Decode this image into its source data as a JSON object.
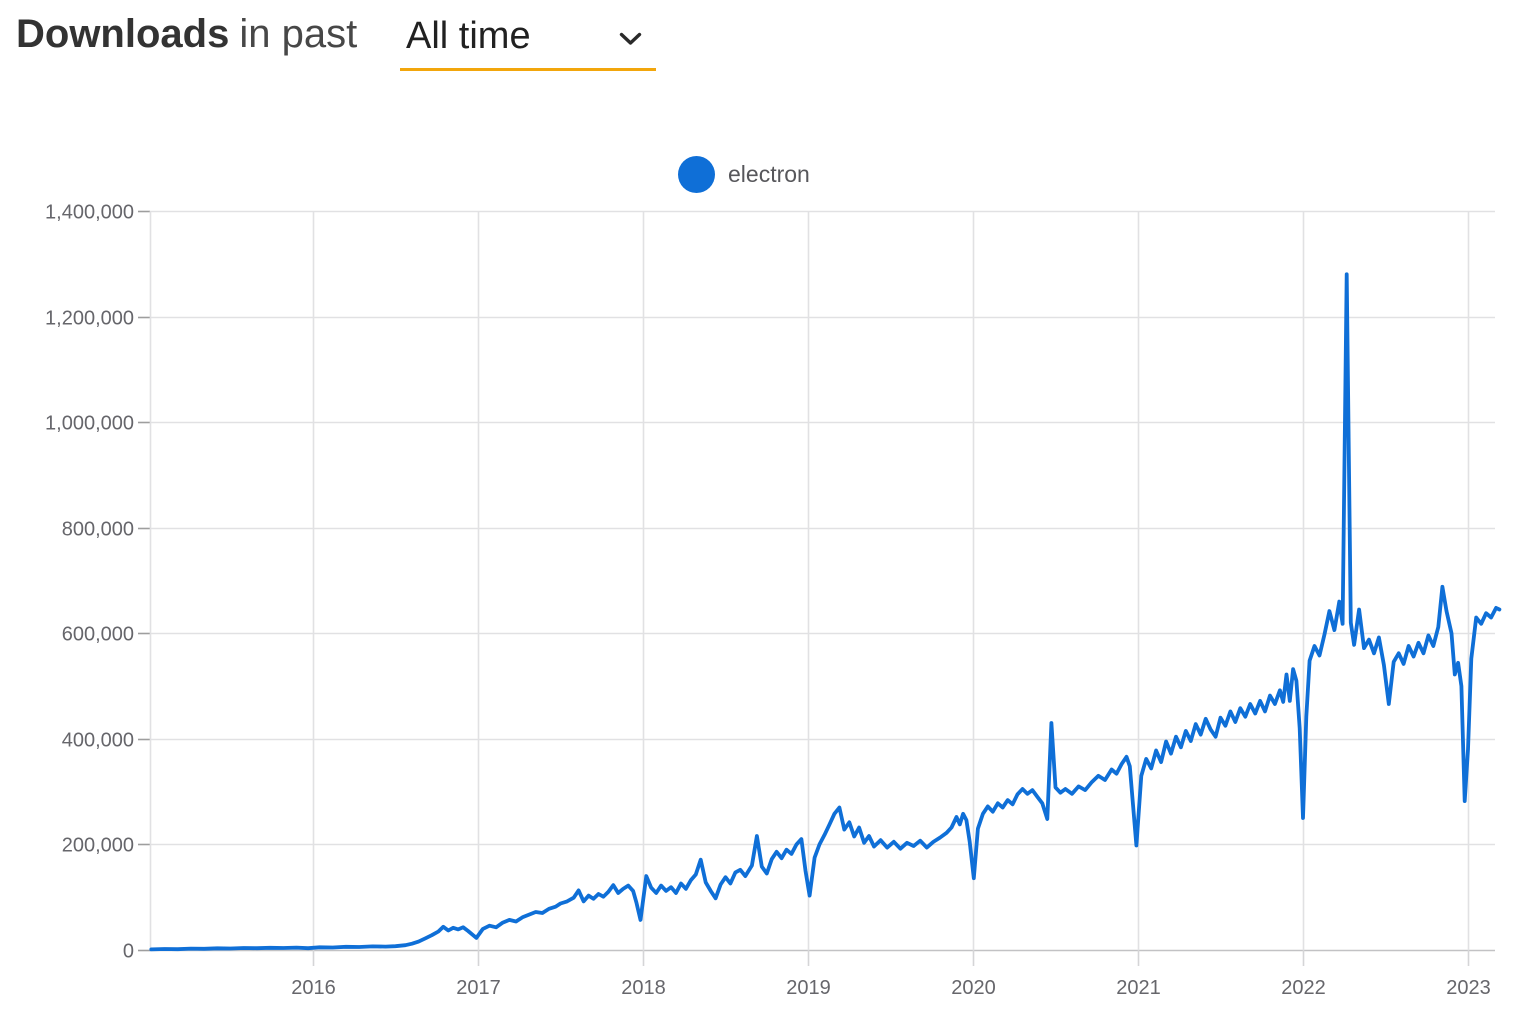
{
  "header": {
    "title_bold": "Downloads",
    "title_in_past": "in past",
    "range_value": "All time",
    "underline_color": "#f2a60c"
  },
  "legend": {
    "series_label": "electron",
    "marker_color": "#0f6fd7"
  },
  "chart_data": {
    "type": "line",
    "title": "Downloads in past All time",
    "legend_position": "top-center",
    "grid": true,
    "series_name": "electron",
    "line_color": "#0f6fd7",
    "x_axis": {
      "tick_years": [
        2016,
        2017,
        2018,
        2019,
        2020,
        2021,
        2022,
        2023
      ],
      "tick_labels": [
        "2016",
        "2017",
        "2018",
        "2019",
        "2020",
        "2021",
        "2022",
        "2023"
      ],
      "range": [
        2015.0,
        2023.22
      ]
    },
    "y_axis": {
      "tick_values": [
        0,
        200000,
        400000,
        600000,
        800000,
        1000000,
        1200000,
        1400000
      ],
      "tick_labels": [
        "0",
        "200,000",
        "400,000",
        "600,000",
        "800,000",
        "1,000,000",
        "1,200,000",
        "1,400,000"
      ],
      "range": [
        0,
        1400000
      ]
    },
    "series": [
      {
        "name": "electron",
        "color": "#0f6fd7",
        "points": [
          [
            2015.02,
            1200
          ],
          [
            2015.1,
            1800
          ],
          [
            2015.18,
            1500
          ],
          [
            2015.26,
            2600
          ],
          [
            2015.34,
            2200
          ],
          [
            2015.42,
            3200
          ],
          [
            2015.5,
            2800
          ],
          [
            2015.58,
            3800
          ],
          [
            2015.66,
            3400
          ],
          [
            2015.74,
            4200
          ],
          [
            2015.82,
            3800
          ],
          [
            2015.9,
            4600
          ],
          [
            2015.97,
            3500
          ],
          [
            2016.04,
            5200
          ],
          [
            2016.12,
            4800
          ],
          [
            2016.2,
            6000
          ],
          [
            2016.28,
            5600
          ],
          [
            2016.36,
            6800
          ],
          [
            2016.44,
            6400
          ],
          [
            2016.5,
            7200
          ],
          [
            2016.56,
            9000
          ],
          [
            2016.6,
            12000
          ],
          [
            2016.64,
            16000
          ],
          [
            2016.68,
            22000
          ],
          [
            2016.72,
            28000
          ],
          [
            2016.76,
            35000
          ],
          [
            2016.79,
            44000
          ],
          [
            2016.82,
            37000
          ],
          [
            2016.85,
            42000
          ],
          [
            2016.88,
            39000
          ],
          [
            2016.91,
            43000
          ],
          [
            2016.94,
            36000
          ],
          [
            2016.97,
            28000
          ],
          [
            2016.99,
            23000
          ],
          [
            2017.03,
            40000
          ],
          [
            2017.07,
            46000
          ],
          [
            2017.11,
            43000
          ],
          [
            2017.15,
            52000
          ],
          [
            2017.19,
            57000
          ],
          [
            2017.23,
            54000
          ],
          [
            2017.27,
            62000
          ],
          [
            2017.31,
            67000
          ],
          [
            2017.35,
            72000
          ],
          [
            2017.39,
            70000
          ],
          [
            2017.43,
            78000
          ],
          [
            2017.47,
            82000
          ],
          [
            2017.5,
            88000
          ],
          [
            2017.54,
            92000
          ],
          [
            2017.58,
            99000
          ],
          [
            2017.61,
            113000
          ],
          [
            2017.64,
            92000
          ],
          [
            2017.67,
            103000
          ],
          [
            2017.7,
            97000
          ],
          [
            2017.73,
            106000
          ],
          [
            2017.76,
            101000
          ],
          [
            2017.79,
            110000
          ],
          [
            2017.82,
            123000
          ],
          [
            2017.85,
            108000
          ],
          [
            2017.88,
            116000
          ],
          [
            2017.91,
            122000
          ],
          [
            2017.94,
            112000
          ],
          [
            2017.96,
            90000
          ],
          [
            2017.985,
            57000
          ],
          [
            2018.02,
            140000
          ],
          [
            2018.05,
            118000
          ],
          [
            2018.08,
            108000
          ],
          [
            2018.11,
            122000
          ],
          [
            2018.14,
            112000
          ],
          [
            2018.17,
            119000
          ],
          [
            2018.2,
            108000
          ],
          [
            2018.23,
            126000
          ],
          [
            2018.26,
            116000
          ],
          [
            2018.29,
            132000
          ],
          [
            2018.32,
            143000
          ],
          [
            2018.35,
            171000
          ],
          [
            2018.38,
            128000
          ],
          [
            2018.41,
            112000
          ],
          [
            2018.44,
            98000
          ],
          [
            2018.47,
            124000
          ],
          [
            2018.5,
            138000
          ],
          [
            2018.53,
            126000
          ],
          [
            2018.56,
            147000
          ],
          [
            2018.59,
            152000
          ],
          [
            2018.62,
            140000
          ],
          [
            2018.66,
            160000
          ],
          [
            2018.69,
            216000
          ],
          [
            2018.72,
            158000
          ],
          [
            2018.75,
            145000
          ],
          [
            2018.78,
            172000
          ],
          [
            2018.81,
            186000
          ],
          [
            2018.84,
            174000
          ],
          [
            2018.87,
            190000
          ],
          [
            2018.9,
            182000
          ],
          [
            2018.93,
            200000
          ],
          [
            2018.96,
            210000
          ],
          [
            2018.985,
            150000
          ],
          [
            2019.01,
            103000
          ],
          [
            2019.04,
            175000
          ],
          [
            2019.07,
            200000
          ],
          [
            2019.1,
            218000
          ],
          [
            2019.13,
            238000
          ],
          [
            2019.16,
            258000
          ],
          [
            2019.19,
            270000
          ],
          [
            2019.22,
            228000
          ],
          [
            2019.25,
            242000
          ],
          [
            2019.28,
            215000
          ],
          [
            2019.31,
            232000
          ],
          [
            2019.34,
            203000
          ],
          [
            2019.37,
            216000
          ],
          [
            2019.4,
            196000
          ],
          [
            2019.44,
            208000
          ],
          [
            2019.48,
            194000
          ],
          [
            2019.52,
            205000
          ],
          [
            2019.56,
            192000
          ],
          [
            2019.6,
            203000
          ],
          [
            2019.64,
            197000
          ],
          [
            2019.68,
            207000
          ],
          [
            2019.72,
            194000
          ],
          [
            2019.76,
            205000
          ],
          [
            2019.8,
            213000
          ],
          [
            2019.84,
            222000
          ],
          [
            2019.87,
            232000
          ],
          [
            2019.9,
            252000
          ],
          [
            2019.92,
            238000
          ],
          [
            2019.94,
            258000
          ],
          [
            2019.96,
            246000
          ],
          [
            2019.98,
            205000
          ],
          [
            2020.005,
            136000
          ],
          [
            2020.03,
            230000
          ],
          [
            2020.06,
            258000
          ],
          [
            2020.09,
            272000
          ],
          [
            2020.12,
            262000
          ],
          [
            2020.15,
            278000
          ],
          [
            2020.18,
            270000
          ],
          [
            2020.21,
            284000
          ],
          [
            2020.24,
            276000
          ],
          [
            2020.27,
            295000
          ],
          [
            2020.3,
            305000
          ],
          [
            2020.33,
            296000
          ],
          [
            2020.36,
            303000
          ],
          [
            2020.39,
            290000
          ],
          [
            2020.42,
            278000
          ],
          [
            2020.45,
            248000
          ],
          [
            2020.475,
            430000
          ],
          [
            2020.5,
            308000
          ],
          [
            2020.53,
            298000
          ],
          [
            2020.56,
            305000
          ],
          [
            2020.6,
            296000
          ],
          [
            2020.64,
            310000
          ],
          [
            2020.68,
            303000
          ],
          [
            2020.72,
            318000
          ],
          [
            2020.76,
            330000
          ],
          [
            2020.8,
            322000
          ],
          [
            2020.84,
            342000
          ],
          [
            2020.87,
            334000
          ],
          [
            2020.9,
            352000
          ],
          [
            2020.93,
            366000
          ],
          [
            2020.95,
            348000
          ],
          [
            2020.99,
            198000
          ],
          [
            2021.02,
            330000
          ],
          [
            2021.05,
            362000
          ],
          [
            2021.08,
            344000
          ],
          [
            2021.11,
            378000
          ],
          [
            2021.14,
            356000
          ],
          [
            2021.17,
            395000
          ],
          [
            2021.2,
            372000
          ],
          [
            2021.23,
            404000
          ],
          [
            2021.26,
            384000
          ],
          [
            2021.29,
            415000
          ],
          [
            2021.32,
            396000
          ],
          [
            2021.35,
            428000
          ],
          [
            2021.38,
            408000
          ],
          [
            2021.41,
            438000
          ],
          [
            2021.44,
            418000
          ],
          [
            2021.47,
            404000
          ],
          [
            2021.5,
            440000
          ],
          [
            2021.53,
            425000
          ],
          [
            2021.56,
            452000
          ],
          [
            2021.59,
            432000
          ],
          [
            2021.62,
            458000
          ],
          [
            2021.65,
            442000
          ],
          [
            2021.68,
            466000
          ],
          [
            2021.71,
            448000
          ],
          [
            2021.74,
            472000
          ],
          [
            2021.77,
            452000
          ],
          [
            2021.8,
            482000
          ],
          [
            2021.83,
            466000
          ],
          [
            2021.86,
            492000
          ],
          [
            2021.88,
            470000
          ],
          [
            2021.9,
            522000
          ],
          [
            2021.92,
            472000
          ],
          [
            2021.94,
            532000
          ],
          [
            2021.96,
            510000
          ],
          [
            2021.98,
            420000
          ],
          [
            2022.0,
            250000
          ],
          [
            2022.02,
            442000
          ],
          [
            2022.04,
            548000
          ],
          [
            2022.07,
            576000
          ],
          [
            2022.1,
            558000
          ],
          [
            2022.13,
            598000
          ],
          [
            2022.16,
            642000
          ],
          [
            2022.19,
            606000
          ],
          [
            2022.22,
            660000
          ],
          [
            2022.24,
            618000
          ],
          [
            2022.265,
            1280000
          ],
          [
            2022.29,
            620000
          ],
          [
            2022.31,
            578000
          ],
          [
            2022.34,
            645000
          ],
          [
            2022.37,
            572000
          ],
          [
            2022.4,
            588000
          ],
          [
            2022.43,
            562000
          ],
          [
            2022.46,
            592000
          ],
          [
            2022.49,
            540000
          ],
          [
            2022.52,
            466000
          ],
          [
            2022.55,
            546000
          ],
          [
            2022.58,
            562000
          ],
          [
            2022.61,
            542000
          ],
          [
            2022.64,
            576000
          ],
          [
            2022.67,
            556000
          ],
          [
            2022.7,
            582000
          ],
          [
            2022.73,
            562000
          ],
          [
            2022.76,
            596000
          ],
          [
            2022.79,
            576000
          ],
          [
            2022.82,
            612000
          ],
          [
            2022.845,
            688000
          ],
          [
            2022.87,
            642000
          ],
          [
            2022.9,
            600000
          ],
          [
            2022.92,
            522000
          ],
          [
            2022.94,
            544000
          ],
          [
            2022.96,
            500000
          ],
          [
            2022.98,
            282000
          ],
          [
            2023.0,
            380000
          ],
          [
            2023.02,
            552000
          ],
          [
            2023.05,
            630000
          ],
          [
            2023.08,
            618000
          ],
          [
            2023.11,
            638000
          ],
          [
            2023.14,
            630000
          ],
          [
            2023.17,
            648000
          ],
          [
            2023.19,
            645000
          ]
        ]
      }
    ]
  },
  "colors": {
    "grid": "#e1e1e3",
    "zero_axis": "#c2c2c4",
    "y_tick": "#9e9e9e",
    "x_tick": "#d5d5d7",
    "axis_label": "#66666b",
    "accent_orange": "#f2a60c",
    "series_blue": "#0f6fd7"
  }
}
